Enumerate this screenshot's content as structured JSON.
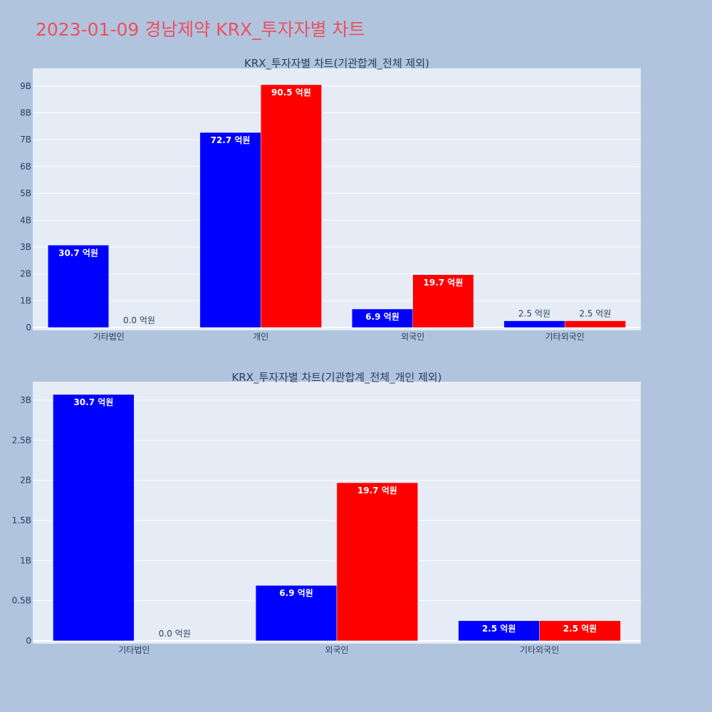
{
  "page": {
    "title": "2023-01-09 경남제약 KRX_투자자별 차트"
  },
  "colors": {
    "background": "#b0c4de",
    "plot_bg": "#e5ecf6",
    "title": "#ef4f5f",
    "buy": "#0000ff",
    "sell": "#ff0000",
    "text": "#2a3f5f"
  },
  "chart_data": [
    {
      "type": "bar",
      "title": "KRX_투자자별 차트(기관합계_전체 제외)",
      "categories": [
        "기타법인",
        "개인",
        "외국인",
        "기타외국인"
      ],
      "series": [
        {
          "color": "#0000ff",
          "values": [
            3070000000,
            7270000000,
            690000000,
            250000000
          ],
          "labels": [
            "30.7 억원",
            "72.7 억원",
            "6.9 억원",
            "2.5 억원"
          ]
        },
        {
          "color": "#ff0000",
          "values": [
            0,
            9050000000,
            1970000000,
            250000000
          ],
          "labels": [
            "0.0 억원",
            "90.5 억원",
            "19.7 억원",
            "2.5 억원"
          ]
        }
      ],
      "ylim": [
        0,
        9660000000
      ],
      "yticks": [
        0,
        1000000000,
        2000000000,
        3000000000,
        4000000000,
        5000000000,
        6000000000,
        7000000000,
        8000000000,
        9000000000
      ],
      "ytick_labels": [
        "0",
        "1B",
        "2B",
        "3B",
        "4B",
        "5B",
        "6B",
        "7B",
        "8B",
        "9B"
      ],
      "grid": true,
      "xlabel": "",
      "ylabel": ""
    },
    {
      "type": "bar",
      "title": "KRX_투자자별 차트(기관합계_전체_개인 제외)",
      "categories": [
        "기타법인",
        "외국인",
        "기타외국인"
      ],
      "series": [
        {
          "color": "#0000ff",
          "values": [
            3070000000,
            690000000,
            250000000
          ],
          "labels": [
            "30.7 억원",
            "6.9 억원",
            "2.5 억원"
          ]
        },
        {
          "color": "#ff0000",
          "values": [
            0,
            1970000000,
            250000000
          ],
          "labels": [
            "0.0 억원",
            "19.7 억원",
            "2.5 억원"
          ]
        }
      ],
      "ylim": [
        0,
        3230000000
      ],
      "yticks": [
        0,
        500000000,
        1000000000,
        1500000000,
        2000000000,
        2500000000,
        3000000000
      ],
      "ytick_labels": [
        "0",
        "0.5B",
        "1B",
        "1.5B",
        "2B",
        "2.5B",
        "3B"
      ],
      "grid": true,
      "xlabel": "",
      "ylabel": ""
    }
  ]
}
